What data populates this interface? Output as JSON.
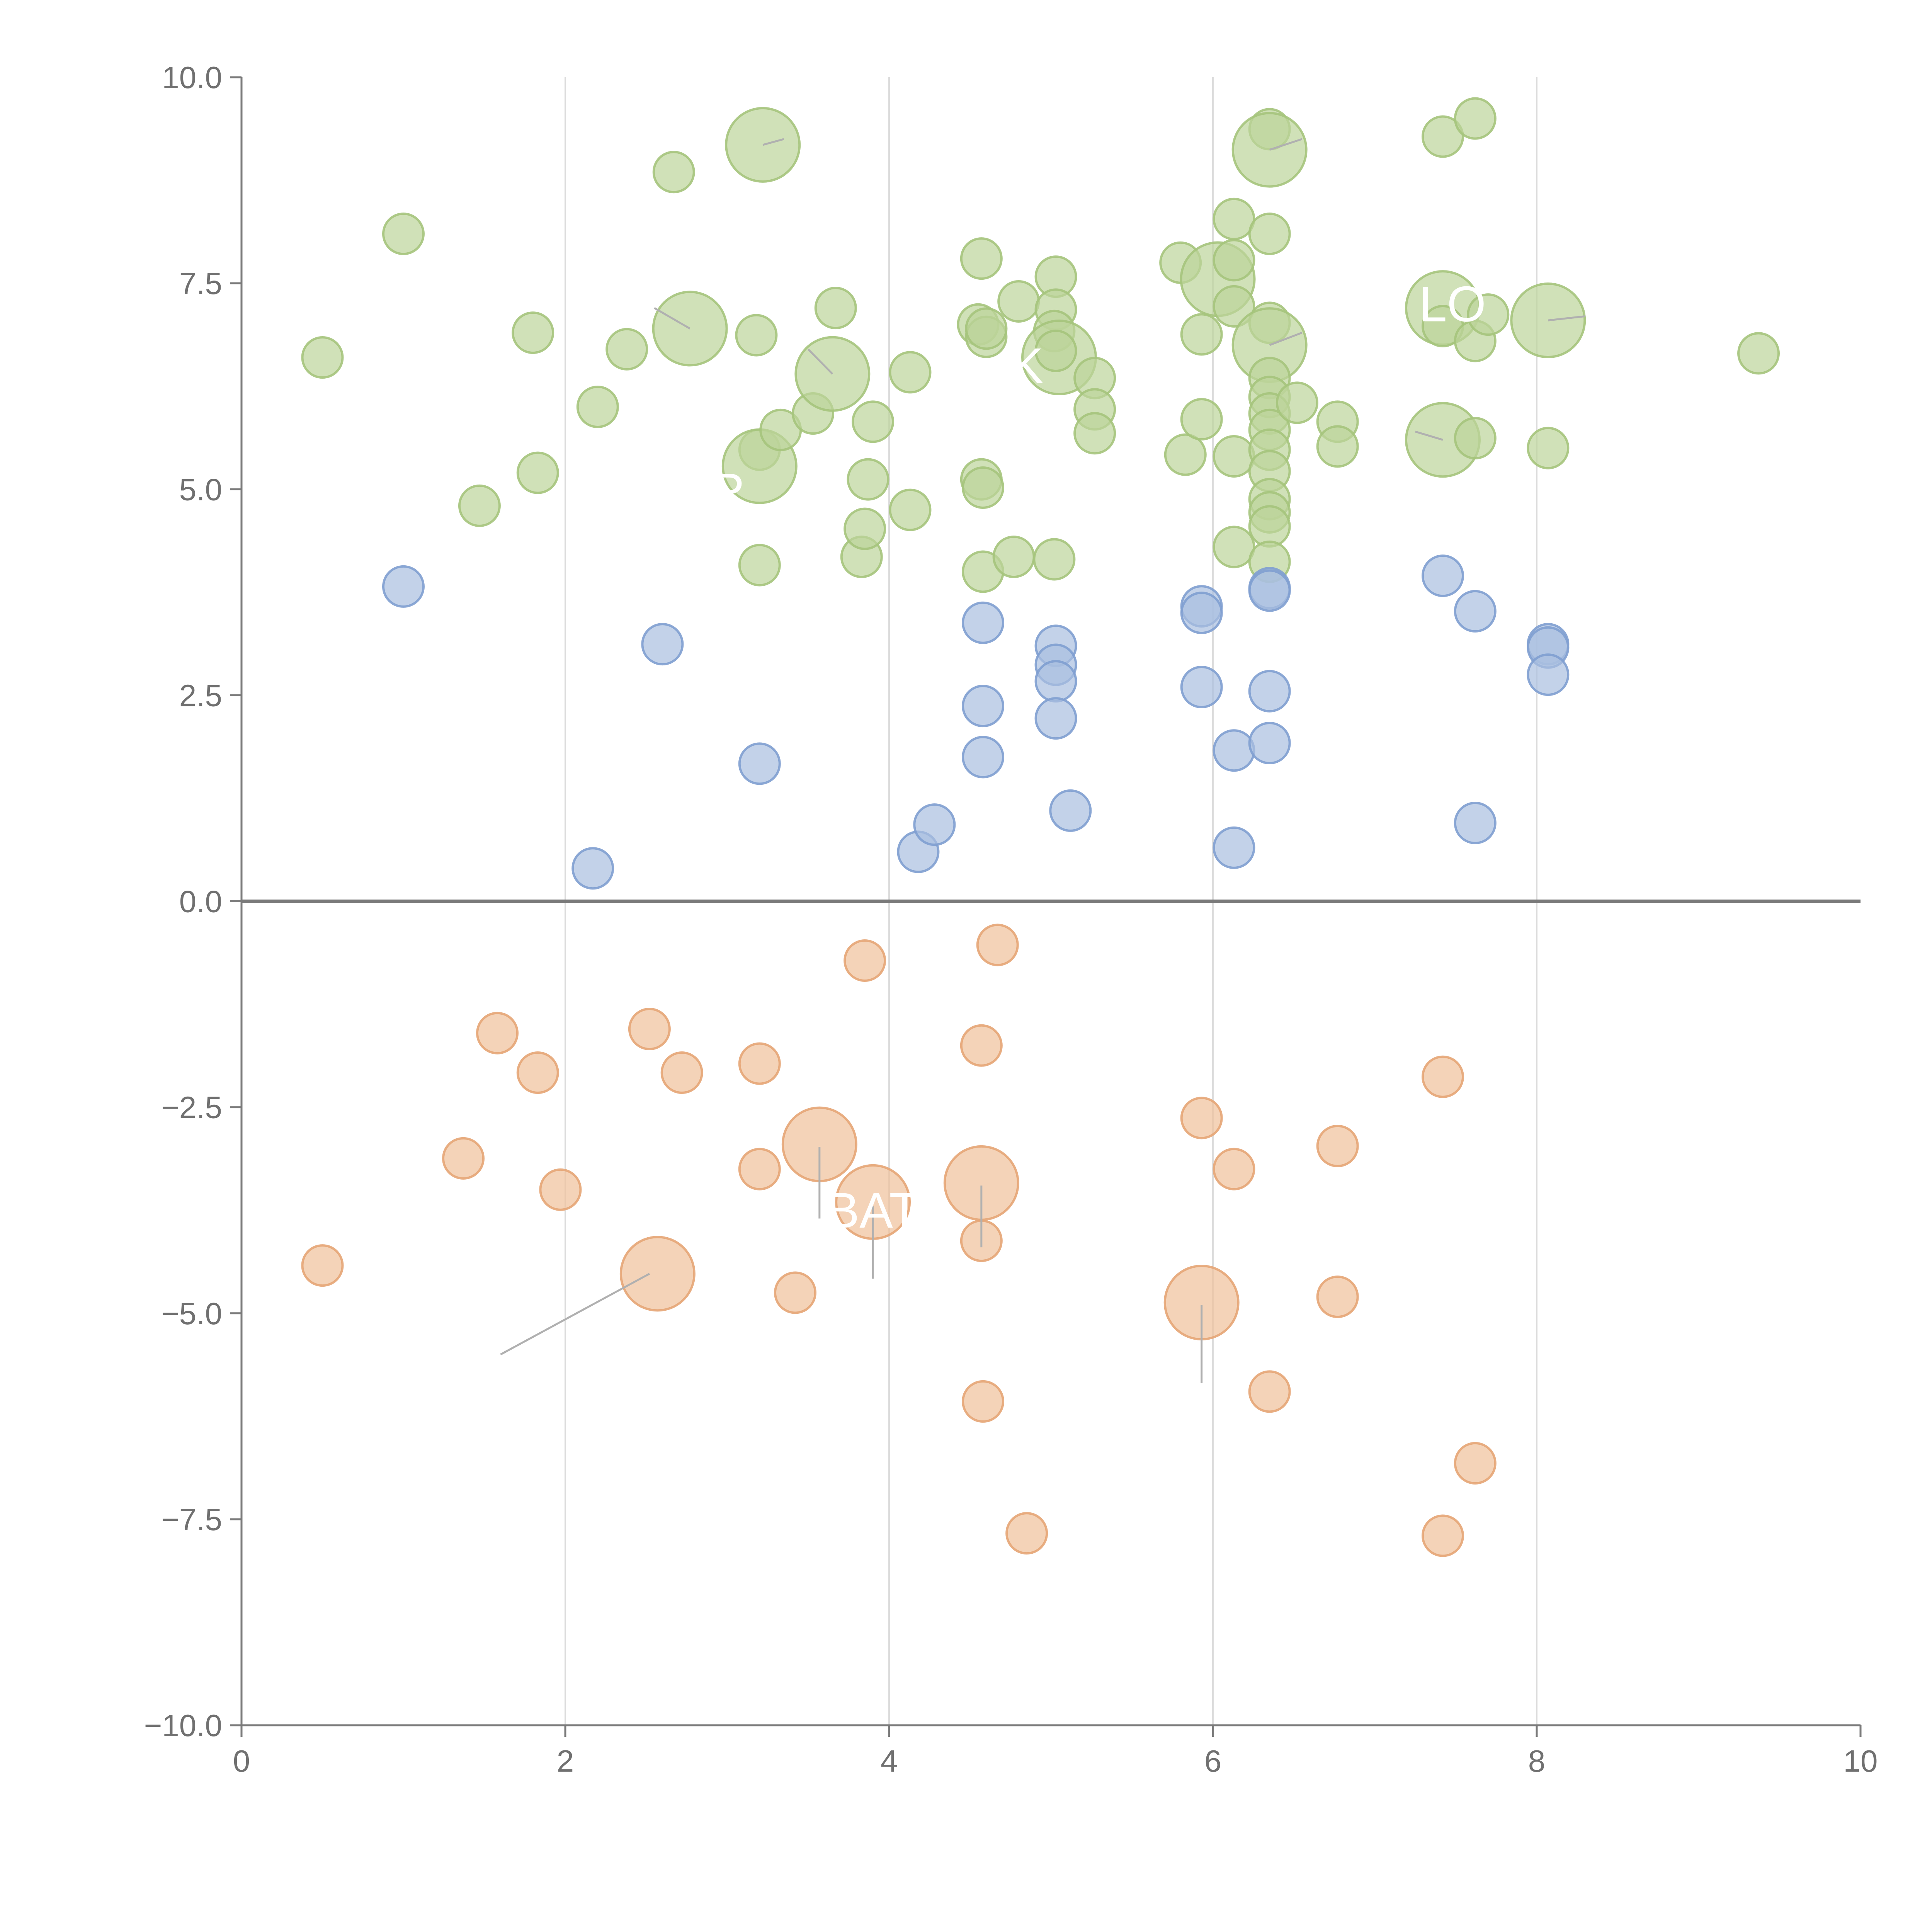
{
  "chart_data": {
    "type": "scatter",
    "title": "",
    "xlabel": "",
    "ylabel": "",
    "xlim": [
      0,
      10
    ],
    "ylim": [
      -10,
      10
    ],
    "x_ticks": [
      {
        "value": 0,
        "label": "0"
      },
      {
        "value": 2,
        "label": "2"
      },
      {
        "value": 4,
        "label": "4"
      },
      {
        "value": 6,
        "label": "6"
      },
      {
        "value": 8,
        "label": "8"
      },
      {
        "value": 10,
        "label": "10"
      }
    ],
    "y_ticks": [
      {
        "value": 10,
        "label": "10.0"
      },
      {
        "value": 7.5,
        "label": "7.5"
      },
      {
        "value": 5,
        "label": "5.0"
      },
      {
        "value": 2.5,
        "label": "2.5"
      },
      {
        "value": 0,
        "label": "0.0"
      },
      {
        "value": -2.5,
        "label": "−2.5"
      },
      {
        "value": -5,
        "label": "−5.0"
      },
      {
        "value": -7.5,
        "label": "−7.5"
      },
      {
        "value": -10,
        "label": "−10.0"
      }
    ],
    "vertical_grid": [
      2,
      4,
      6,
      8
    ],
    "zero_line": 0,
    "colors": {
      "green_fill": "#bcd49a",
      "green_stroke": "#a5c47c",
      "blue_fill": "#a9bfe0",
      "blue_stroke": "#7f9fd0",
      "orange_fill": "#f0c09a",
      "orange_stroke": "#e5a576"
    },
    "series": [
      {
        "name": "green",
        "color_key": "green",
        "points": [
          [
            0.5,
            6.6,
            1
          ],
          [
            1.0,
            8.1,
            1
          ],
          [
            1.47,
            4.8,
            1
          ],
          [
            1.8,
            6.9,
            1
          ],
          [
            1.83,
            5.2,
            1
          ],
          [
            2.2,
            6.0,
            1
          ],
          [
            2.38,
            6.7,
            1
          ],
          [
            2.67,
            8.85,
            1
          ],
          [
            2.77,
            6.95,
            2
          ],
          [
            3.18,
            6.87,
            1
          ],
          [
            3.2,
            4.08,
            1
          ],
          [
            3.2,
            5.48,
            1
          ],
          [
            3.2,
            5.28,
            2
          ],
          [
            3.22,
            9.18,
            2
          ],
          [
            3.33,
            5.72,
            1
          ],
          [
            3.53,
            5.92,
            1
          ],
          [
            3.65,
            6.4,
            2
          ],
          [
            3.67,
            7.2,
            1
          ],
          [
            3.83,
            4.18,
            1
          ],
          [
            3.85,
            4.52,
            1
          ],
          [
            3.87,
            5.12,
            1
          ],
          [
            3.9,
            5.82,
            1
          ],
          [
            4.13,
            4.75,
            1
          ],
          [
            4.13,
            6.42,
            1
          ],
          [
            4.55,
            7.0,
            1
          ],
          [
            4.57,
            7.8,
            1
          ],
          [
            4.57,
            5.12,
            1
          ],
          [
            4.58,
            5.02,
            1
          ],
          [
            4.58,
            4.0,
            1
          ],
          [
            4.6,
            6.85,
            1
          ],
          [
            4.6,
            6.95,
            1
          ],
          [
            4.8,
            7.28,
            1
          ],
          [
            4.77,
            4.18,
            1
          ],
          [
            5.03,
            7.58,
            1
          ],
          [
            5.03,
            7.18,
            1
          ],
          [
            5.02,
            6.92,
            1
          ],
          [
            5.05,
            6.6,
            2
          ],
          [
            5.03,
            6.68,
            1
          ],
          [
            5.02,
            4.15,
            1
          ],
          [
            5.27,
            6.35,
            1
          ],
          [
            5.27,
            5.97,
            1
          ],
          [
            5.27,
            5.68,
            1
          ],
          [
            5.8,
            7.75,
            1
          ],
          [
            5.83,
            5.42,
            1
          ],
          [
            5.93,
            6.88,
            1
          ],
          [
            5.93,
            5.85,
            1
          ],
          [
            6.03,
            7.55,
            2
          ],
          [
            6.13,
            8.28,
            1
          ],
          [
            6.13,
            7.78,
            1
          ],
          [
            6.13,
            7.22,
            1
          ],
          [
            6.13,
            5.4,
            1
          ],
          [
            6.13,
            4.3,
            1
          ],
          [
            6.35,
            9.37,
            1
          ],
          [
            6.35,
            9.12,
            2
          ],
          [
            6.35,
            8.1,
            1
          ],
          [
            6.35,
            7.02,
            1
          ],
          [
            6.35,
            6.75,
            2
          ],
          [
            6.35,
            6.35,
            1
          ],
          [
            6.35,
            6.12,
            1
          ],
          [
            6.35,
            5.92,
            1
          ],
          [
            6.35,
            5.72,
            1
          ],
          [
            6.35,
            5.48,
            1
          ],
          [
            6.35,
            5.22,
            1
          ],
          [
            6.35,
            4.88,
            1
          ],
          [
            6.35,
            4.72,
            1
          ],
          [
            6.35,
            4.55,
            1
          ],
          [
            6.35,
            4.12,
            1
          ],
          [
            6.52,
            6.05,
            1
          ],
          [
            6.77,
            5.82,
            1
          ],
          [
            6.77,
            5.52,
            1
          ],
          [
            7.42,
            9.28,
            1
          ],
          [
            7.42,
            7.2,
            2
          ],
          [
            7.42,
            6.98,
            1
          ],
          [
            7.42,
            5.6,
            2
          ],
          [
            7.62,
            9.5,
            1
          ],
          [
            7.62,
            6.8,
            1
          ],
          [
            7.62,
            5.62,
            1
          ],
          [
            7.7,
            7.12,
            1
          ],
          [
            8.07,
            7.05,
            2
          ],
          [
            8.07,
            5.5,
            1
          ],
          [
            9.37,
            6.65,
            1
          ]
        ]
      },
      {
        "name": "blue",
        "color_key": "blue",
        "points": [
          [
            1.0,
            3.82,
            1
          ],
          [
            2.17,
            0.4,
            1
          ],
          [
            2.6,
            3.12,
            1
          ],
          [
            3.2,
            1.67,
            1
          ],
          [
            4.18,
            0.6,
            1
          ],
          [
            4.28,
            0.93,
            1
          ],
          [
            4.58,
            3.38,
            1
          ],
          [
            4.58,
            2.37,
            1
          ],
          [
            4.58,
            1.75,
            1
          ],
          [
            5.03,
            3.1,
            1
          ],
          [
            5.03,
            2.87,
            1
          ],
          [
            5.03,
            2.67,
            1
          ],
          [
            5.03,
            2.22,
            1
          ],
          [
            5.12,
            1.1,
            1
          ],
          [
            5.93,
            3.58,
            1
          ],
          [
            5.93,
            3.5,
            1
          ],
          [
            5.93,
            2.6,
            1
          ],
          [
            6.13,
            1.83,
            1
          ],
          [
            6.13,
            0.65,
            1
          ],
          [
            6.35,
            3.8,
            1
          ],
          [
            6.35,
            3.77,
            1
          ],
          [
            6.35,
            2.55,
            1
          ],
          [
            6.35,
            1.92,
            1
          ],
          [
            7.42,
            3.95,
            1
          ],
          [
            7.62,
            3.52,
            1
          ],
          [
            7.62,
            0.95,
            1
          ],
          [
            8.07,
            3.12,
            1
          ],
          [
            8.07,
            3.08,
            1
          ],
          [
            8.07,
            2.75,
            1
          ]
        ]
      },
      {
        "name": "orange",
        "color_key": "orange",
        "points": [
          [
            0.5,
            -4.42,
            1
          ],
          [
            1.37,
            -3.12,
            1
          ],
          [
            1.58,
            -1.6,
            1
          ],
          [
            1.83,
            -2.08,
            1
          ],
          [
            1.97,
            -3.5,
            1
          ],
          [
            2.52,
            -1.55,
            1
          ],
          [
            2.57,
            -4.52,
            2
          ],
          [
            2.72,
            -2.08,
            1
          ],
          [
            3.2,
            -1.97,
            1
          ],
          [
            3.2,
            -3.25,
            1
          ],
          [
            3.42,
            -4.75,
            1
          ],
          [
            3.57,
            -2.95,
            2
          ],
          [
            3.85,
            -0.72,
            1
          ],
          [
            3.9,
            -3.65,
            2
          ],
          [
            4.57,
            -1.75,
            1
          ],
          [
            4.57,
            -3.42,
            2
          ],
          [
            4.57,
            -4.12,
            1
          ],
          [
            4.58,
            -6.07,
            1
          ],
          [
            4.67,
            -0.53,
            1
          ],
          [
            4.85,
            -7.67,
            1
          ],
          [
            5.93,
            -2.63,
            1
          ],
          [
            5.93,
            -4.87,
            2
          ],
          [
            6.13,
            -3.25,
            1
          ],
          [
            6.35,
            -5.95,
            1
          ],
          [
            6.77,
            -2.97,
            1
          ],
          [
            6.77,
            -4.8,
            1
          ],
          [
            7.42,
            -2.13,
            1
          ],
          [
            7.42,
            -7.7,
            1
          ],
          [
            7.62,
            -6.82,
            1
          ]
        ]
      }
    ],
    "labels": [
      {
        "text": "R",
        "x": 3.0,
        "y": 4.98
      },
      {
        "text": "K",
        "x": 4.85,
        "y": 6.5
      },
      {
        "text": "LO",
        "x": 7.48,
        "y": 7.25
      },
      {
        "text": "BAT",
        "x": 3.9,
        "y": -3.75
      }
    ],
    "leaders": [
      [
        [
          2.52,
          -4.52
        ],
        [
          1.6,
          -5.5
        ]
      ],
      [
        [
          3.57,
          -2.98
        ],
        [
          3.57,
          -3.85
        ]
      ],
      [
        [
          3.9,
          -3.7
        ],
        [
          3.9,
          -4.58
        ]
      ],
      [
        [
          4.57,
          -3.45
        ],
        [
          4.57,
          -4.2
        ]
      ],
      [
        [
          5.93,
          -4.9
        ],
        [
          5.93,
          -5.85
        ]
      ],
      [
        [
          2.77,
          6.95
        ],
        [
          2.55,
          7.2
        ]
      ],
      [
        [
          3.65,
          6.4
        ],
        [
          3.5,
          6.7
        ]
      ],
      [
        [
          3.22,
          9.18
        ],
        [
          3.35,
          9.25
        ]
      ],
      [
        [
          6.35,
          9.12
        ],
        [
          6.55,
          9.25
        ]
      ],
      [
        [
          6.35,
          6.75
        ],
        [
          6.55,
          6.9
        ]
      ],
      [
        [
          7.42,
          5.6
        ],
        [
          7.25,
          5.7
        ]
      ],
      [
        [
          8.07,
          7.05
        ],
        [
          8.3,
          7.1
        ]
      ]
    ]
  }
}
